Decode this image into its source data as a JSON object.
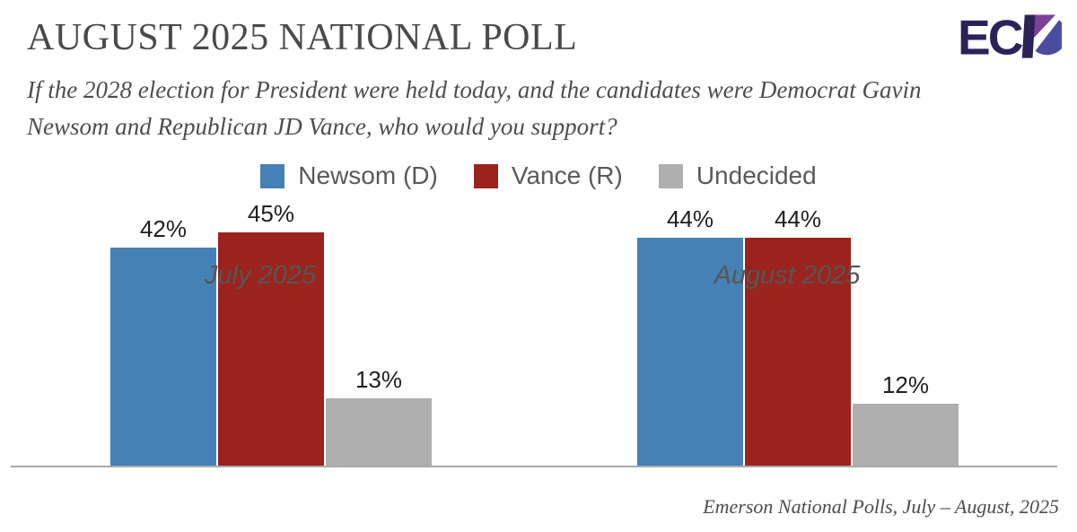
{
  "header": {
    "title": "AUGUST 2025 NATIONAL POLL",
    "subtitle": "If the 2028 election for President were held today, and the candidates were Democrat Gavin Newsom and Republican JD Vance, who would you support?",
    "logo_text": "EC",
    "logo_name": "ECP"
  },
  "footer": {
    "source": "Emerson National Polls, July – August, 2025"
  },
  "colors": {
    "newsom_blue": "#4581B4",
    "vance_red": "#9A231E",
    "undecided_gray": "#AFAFAF",
    "axis_line": "#A9A9A9",
    "title_text": "#4A4A4A",
    "body_text": "#4D4D4D",
    "legend_text": "#595959",
    "value_label_text": "#1F1F1F",
    "logo_navy": "#2D2258",
    "logo_purple": "#7D3F98",
    "logo_blue": "#4A4D9F"
  },
  "chart_data": {
    "type": "bar",
    "title": "AUGUST 2025 NATIONAL POLL",
    "question": "If the 2028 election for President were held today, and the candidates were Democrat Gavin Newsom and Republican JD Vance, who would you support?",
    "categories": [
      "July 2025",
      "August 2025"
    ],
    "series": [
      {
        "name": "Newsom (D)",
        "color": "#4581B4",
        "values": [
          42,
          44
        ]
      },
      {
        "name": "Vance (R)",
        "color": "#9A231E",
        "values": [
          45,
          44
        ]
      },
      {
        "name": "Undecided",
        "color": "#AFAFAF",
        "values": [
          13,
          12
        ]
      }
    ],
    "value_suffix": "%",
    "ylim": [
      0,
      50
    ],
    "grid": false,
    "y_axis_visible": false,
    "legend_position": "top",
    "source": "Emerson National Polls, July – August, 2025"
  }
}
